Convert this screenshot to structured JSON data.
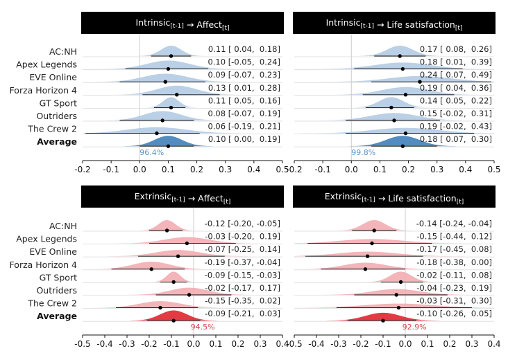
{
  "colors": {
    "header_bg": "#000000",
    "header_text": "#ffffff",
    "intrinsic_light": "#aec8e3",
    "intrinsic_dark": "#4a86bd",
    "intrinsic_label": "#5a93c8",
    "extrinsic_light": "#f1a8ad",
    "extrinsic_dark": "#e0303a",
    "extrinsic_label": "#d9414a",
    "gridline": "#d9d9d9",
    "zero_line": "#cccccc"
  },
  "row_labels": [
    "AC:NH",
    "Apex Legends",
    "EVE Online",
    "Forza Horizon 4",
    "GT Sport",
    "Outriders",
    "The Crew 2",
    "Average"
  ],
  "chart_data": [
    {
      "type": "ridgeline-interval",
      "title": "Intrinsic[t-1] → Affect[t]",
      "title_parts": {
        "a": "Intrinsic",
        "a_sub": "[t-1]",
        "arrow": " → ",
        "b": "Affect",
        "b_sub": "[t]"
      },
      "family": "intrinsic",
      "xlim": [
        -0.2,
        0.5
      ],
      "xticks": [
        "-0.2",
        "-0.1",
        "0.0",
        "0.1",
        "0.2",
        "0.3",
        "0.4",
        "0.5"
      ],
      "rows": [
        {
          "label": "AC:NH",
          "est": 0.11,
          "lo": 0.04,
          "hi": 0.18,
          "text": "0.11 [ 0.04,  0.18]"
        },
        {
          "label": "Apex Legends",
          "est": 0.1,
          "lo": -0.05,
          "hi": 0.24,
          "text": "0.10 [-0.05,  0.24]"
        },
        {
          "label": "EVE Online",
          "est": 0.09,
          "lo": -0.07,
          "hi": 0.23,
          "text": "0.09 [-0.07,  0.23]"
        },
        {
          "label": "Forza Horizon 4",
          "est": 0.13,
          "lo": 0.01,
          "hi": 0.28,
          "text": "0.13 [ 0.01,  0.28]"
        },
        {
          "label": "GT Sport",
          "est": 0.11,
          "lo": 0.05,
          "hi": 0.16,
          "text": "0.11 [ 0.05,  0.16]"
        },
        {
          "label": "Outriders",
          "est": 0.08,
          "lo": -0.07,
          "hi": 0.19,
          "text": "0.08 [-0.07,  0.19]"
        },
        {
          "label": "The Crew 2",
          "est": 0.06,
          "lo": -0.19,
          "hi": 0.21,
          "text": "0.06 [-0.19,  0.21]"
        },
        {
          "label": "Average",
          "est": 0.1,
          "lo": 0.0,
          "hi": 0.19,
          "text": "0.10 [ 0.00,  0.19]"
        }
      ],
      "probability_label": "96.4%"
    },
    {
      "type": "ridgeline-interval",
      "title": "Intrinsic[t-1] → Life satisfaction[t]",
      "title_parts": {
        "a": "Intrinsic",
        "a_sub": "[t-1]",
        "arrow": " → ",
        "b": "Life satisfaction",
        "b_sub": "[t]"
      },
      "family": "intrinsic",
      "xlim": [
        -0.2,
        0.5
      ],
      "xticks": [
        "-0.2",
        "-0.1",
        "0.0",
        "0.1",
        "0.2",
        "0.3",
        "0.4",
        "0.5"
      ],
      "rows": [
        {
          "label": "AC:NH",
          "est": 0.17,
          "lo": 0.08,
          "hi": 0.26,
          "text": "0.17 [ 0.08,  0.26]"
        },
        {
          "label": "Apex Legends",
          "est": 0.18,
          "lo": 0.01,
          "hi": 0.39,
          "text": "0.18 [ 0.01,  0.39]"
        },
        {
          "label": "EVE Online",
          "est": 0.24,
          "lo": 0.07,
          "hi": 0.49,
          "text": "0.24 [ 0.07,  0.49]"
        },
        {
          "label": "Forza Horizon 4",
          "est": 0.19,
          "lo": 0.04,
          "hi": 0.36,
          "text": "0.19 [ 0.04,  0.36]"
        },
        {
          "label": "GT Sport",
          "est": 0.14,
          "lo": 0.05,
          "hi": 0.22,
          "text": "0.14 [ 0.05,  0.22]"
        },
        {
          "label": "Outriders",
          "est": 0.15,
          "lo": -0.02,
          "hi": 0.31,
          "text": "0.15 [-0.02,  0.31]"
        },
        {
          "label": "The Crew 2",
          "est": 0.19,
          "lo": -0.02,
          "hi": 0.43,
          "text": "0.19 [-0.02,  0.43]"
        },
        {
          "label": "Average",
          "est": 0.18,
          "lo": 0.07,
          "hi": 0.3,
          "text": "0.18 [ 0.07,  0.30]"
        }
      ],
      "probability_label": "99.8%"
    },
    {
      "type": "ridgeline-interval",
      "title": "Extrinsic[t-1] → Affect[t]",
      "title_parts": {
        "a": "Extrinsic",
        "a_sub": "[t-1]",
        "arrow": " → ",
        "b": "Affect",
        "b_sub": "[t]"
      },
      "family": "extrinsic",
      "xlim": [
        -0.5,
        0.4
      ],
      "xticks": [
        "-0.5",
        "-0.4",
        "-0.3",
        "-0.2",
        "-0.1",
        "0.0",
        "0.1",
        "0.2",
        "0.3",
        "0.4"
      ],
      "rows": [
        {
          "label": "AC:NH",
          "est": -0.12,
          "lo": -0.2,
          "hi": -0.05,
          "text": "-0.12 [-0.20, -0.05]"
        },
        {
          "label": "Apex Legends",
          "est": -0.03,
          "lo": -0.2,
          "hi": 0.19,
          "text": "-0.03 [-0.20,  0.19]"
        },
        {
          "label": "EVE Online",
          "est": -0.07,
          "lo": -0.25,
          "hi": 0.14,
          "text": "-0.07 [-0.25,  0.14]"
        },
        {
          "label": "Forza Horizon 4",
          "est": -0.19,
          "lo": -0.37,
          "hi": -0.04,
          "text": "-0.19 [-0.37, -0.04]"
        },
        {
          "label": "GT Sport",
          "est": -0.09,
          "lo": -0.15,
          "hi": -0.03,
          "text": "-0.09 [-0.15, -0.03]"
        },
        {
          "label": "Outriders",
          "est": -0.02,
          "lo": -0.17,
          "hi": 0.17,
          "text": "-0.02 [-0.17,  0.17]"
        },
        {
          "label": "The Crew 2",
          "est": -0.15,
          "lo": -0.35,
          "hi": 0.02,
          "text": "-0.15 [-0.35,  0.02]"
        },
        {
          "label": "Average",
          "est": -0.09,
          "lo": -0.21,
          "hi": 0.03,
          "text": "-0.09 [-0.21,  0.03]"
        }
      ],
      "probability_label": "94.5%"
    },
    {
      "type": "ridgeline-interval",
      "title": "Extrinsic[t-1] → Life satisfaction[t]",
      "title_parts": {
        "a": "Extrinsic",
        "a_sub": "[t-1]",
        "arrow": " → ",
        "b": "Life satisfaction",
        "b_sub": "[t]"
      },
      "family": "extrinsic",
      "xlim": [
        -0.5,
        0.4
      ],
      "xticks": [
        "-0.5",
        "-0.4",
        "-0.3",
        "-0.2",
        "-0.1",
        "0.0",
        "0.1",
        "0.2",
        "0.3",
        "0.4"
      ],
      "rows": [
        {
          "label": "AC:NH",
          "est": -0.14,
          "lo": -0.24,
          "hi": -0.04,
          "text": "-0.14 [-0.24, -0.04]"
        },
        {
          "label": "Apex Legends",
          "est": -0.15,
          "lo": -0.44,
          "hi": 0.12,
          "text": "-0.15 [-0.44,  0.12]"
        },
        {
          "label": "EVE Online",
          "est": -0.17,
          "lo": -0.45,
          "hi": 0.08,
          "text": "-0.17 [-0.45,  0.08]"
        },
        {
          "label": "Forza Horizon 4",
          "est": -0.18,
          "lo": -0.38,
          "hi": 0.0,
          "text": "-0.18 [-0.38,  0.00]"
        },
        {
          "label": "GT Sport",
          "est": -0.02,
          "lo": -0.11,
          "hi": 0.08,
          "text": "-0.02 [-0.11,  0.08]"
        },
        {
          "label": "Outriders",
          "est": -0.04,
          "lo": -0.23,
          "hi": 0.19,
          "text": "-0.04 [-0.23,  0.19]"
        },
        {
          "label": "The Crew 2",
          "est": -0.03,
          "lo": -0.31,
          "hi": 0.3,
          "text": "-0.03 [-0.31,  0.30]"
        },
        {
          "label": "Average",
          "est": -0.1,
          "lo": -0.26,
          "hi": 0.05,
          "text": "-0.10 [-0.26,  0.05]"
        }
      ],
      "probability_label": "92.9%"
    }
  ]
}
